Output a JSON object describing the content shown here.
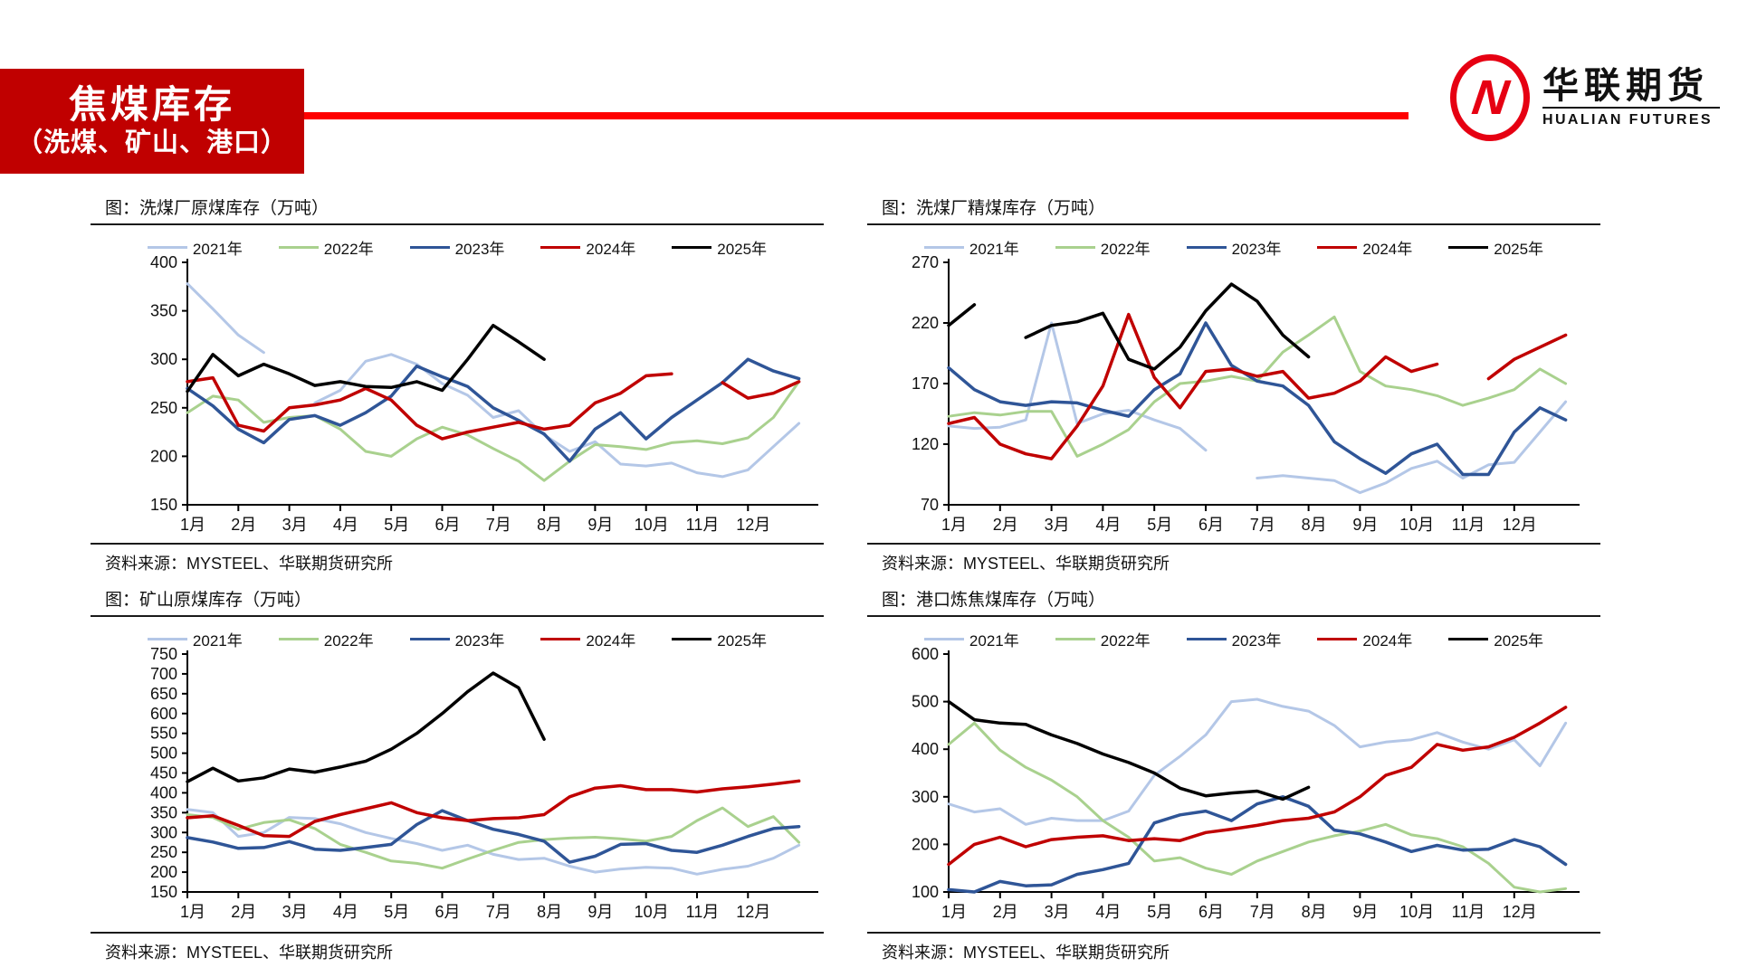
{
  "header": {
    "title": "焦煤库存",
    "subtitle": "（洗煤、矿山、港口）",
    "banner_color": "#C00000",
    "rule_color": "#FE0000",
    "logo_letter": "N",
    "logo_cn": "华联期货",
    "logo_en": "HUALIAN FUTURES",
    "logo_color": "#E60012"
  },
  "source_label": "资料来源：MYSTEEL、华联期货研究所",
  "months": [
    "1月",
    "2月",
    "3月",
    "4月",
    "5月",
    "6月",
    "7月",
    "8月",
    "9月",
    "10月",
    "11月",
    "12月"
  ],
  "legend_years": [
    "2021年",
    "2022年",
    "2023年",
    "2024年",
    "2025年"
  ],
  "series_colors": {
    "2021年": "#B4C7E7",
    "2022年": "#A9D18E",
    "2023年": "#2F5597",
    "2024年": "#C00000",
    "2025年": "#000000"
  },
  "chart_data": [
    {
      "type": "line",
      "title": "图：洗煤厂原煤库存（万吨）",
      "ylabel": "万吨",
      "ylim": [
        150,
        400
      ],
      "yticks": [
        150,
        200,
        250,
        300,
        350,
        400
      ],
      "x_unit": "半月 (1月初–12月末)",
      "series": [
        {
          "name": "2021年",
          "color": "#B4C7E7",
          "values": [
            378,
            352,
            325,
            307,
            null,
            255,
            268,
            298,
            305,
            295,
            275,
            263,
            240,
            247,
            222,
            205,
            215,
            192,
            190,
            193,
            183,
            179,
            186,
            210,
            234
          ]
        },
        {
          "name": "2022年",
          "color": "#A9D18E",
          "values": [
            245,
            262,
            258,
            235,
            240,
            242,
            228,
            205,
            200,
            218,
            230,
            222,
            208,
            195,
            175,
            195,
            212,
            210,
            207,
            214,
            216,
            213,
            219,
            240,
            277
          ]
        },
        {
          "name": "2023年",
          "color": "#2F5597",
          "values": [
            270,
            252,
            228,
            214,
            238,
            242,
            232,
            245,
            262,
            293,
            282,
            272,
            250,
            237,
            223,
            195,
            228,
            245,
            218,
            240,
            258,
            276,
            300,
            288,
            280
          ]
        },
        {
          "name": "2024年",
          "color": "#C00000",
          "values": [
            277,
            281,
            232,
            226,
            250,
            253,
            258,
            270,
            258,
            232,
            218,
            225,
            230,
            235,
            228,
            232,
            255,
            265,
            283,
            285,
            null,
            276,
            260,
            265,
            277
          ]
        },
        {
          "name": "2025年",
          "color": "#000000",
          "values": [
            267,
            305,
            283,
            295,
            285,
            273,
            277,
            272,
            271,
            277,
            268,
            300,
            335,
            318,
            300,
            null,
            null,
            null,
            null,
            null,
            null,
            null,
            null,
            null,
            null
          ]
        }
      ]
    },
    {
      "type": "line",
      "title": "图：洗煤厂精煤库存（万吨）",
      "ylabel": "万吨",
      "ylim": [
        70,
        270
      ],
      "yticks": [
        70,
        120,
        170,
        220,
        270
      ],
      "x_unit": "半月 (1月初–12月末)",
      "series": [
        {
          "name": "2021年",
          "color": "#B4C7E7",
          "values": [
            135,
            133,
            134,
            140,
            220,
            137,
            145,
            148,
            140,
            133,
            115,
            null,
            92,
            94,
            92,
            90,
            80,
            88,
            100,
            106,
            92,
            103,
            105,
            130,
            155
          ]
        },
        {
          "name": "2022年",
          "color": "#A9D18E",
          "values": [
            143,
            146,
            144,
            147,
            147,
            110,
            120,
            132,
            155,
            170,
            172,
            176,
            172,
            196,
            210,
            225,
            180,
            168,
            165,
            160,
            152,
            158,
            165,
            182,
            170
          ]
        },
        {
          "name": "2023年",
          "color": "#2F5597",
          "values": [
            183,
            165,
            155,
            152,
            155,
            154,
            148,
            143,
            165,
            178,
            220,
            185,
            172,
            168,
            152,
            122,
            108,
            96,
            112,
            120,
            95,
            95,
            130,
            150,
            140
          ]
        },
        {
          "name": "2024年",
          "color": "#C00000",
          "values": [
            137,
            142,
            120,
            112,
            108,
            135,
            168,
            227,
            175,
            150,
            180,
            182,
            176,
            180,
            158,
            162,
            172,
            192,
            180,
            186,
            null,
            174,
            190,
            200,
            210
          ]
        },
        {
          "name": "2025年",
          "color": "#000000",
          "values": [
            218,
            235,
            null,
            208,
            218,
            221,
            228,
            190,
            182,
            200,
            230,
            252,
            238,
            210,
            192,
            null,
            null,
            null,
            null,
            null,
            null,
            null,
            null,
            null,
            null
          ]
        }
      ]
    },
    {
      "type": "line",
      "title": "图：矿山原煤库存（万吨）",
      "ylabel": "万吨",
      "ylim": [
        150,
        750
      ],
      "yticks": [
        150,
        200,
        250,
        300,
        350,
        400,
        450,
        500,
        550,
        600,
        650,
        700,
        750
      ],
      "x_unit": "半月 (1月初–12月末)",
      "series": [
        {
          "name": "2021年",
          "color": "#B4C7E7",
          "values": [
            358,
            350,
            290,
            300,
            338,
            335,
            322,
            300,
            285,
            272,
            255,
            268,
            245,
            232,
            235,
            215,
            200,
            208,
            212,
            210,
            195,
            207,
            215,
            235,
            268
          ]
        },
        {
          "name": "2022年",
          "color": "#A9D18E",
          "values": [
            345,
            338,
            308,
            325,
            332,
            310,
            270,
            250,
            228,
            222,
            210,
            233,
            255,
            275,
            282,
            286,
            288,
            284,
            278,
            290,
            330,
            362,
            315,
            340,
            275
          ]
        },
        {
          "name": "2023年",
          "color": "#2F5597",
          "values": [
            287,
            276,
            260,
            262,
            277,
            258,
            255,
            262,
            270,
            320,
            355,
            330,
            308,
            295,
            278,
            225,
            240,
            270,
            272,
            255,
            250,
            268,
            290,
            310,
            315
          ]
        },
        {
          "name": "2024年",
          "color": "#C00000",
          "values": [
            337,
            342,
            318,
            292,
            290,
            328,
            345,
            360,
            375,
            350,
            337,
            330,
            335,
            337,
            345,
            390,
            412,
            418,
            408,
            408,
            402,
            410,
            415,
            422,
            430
          ]
        },
        {
          "name": "2025年",
          "color": "#000000",
          "values": [
            428,
            462,
            430,
            438,
            460,
            452,
            465,
            480,
            510,
            550,
            600,
            655,
            702,
            665,
            535,
            null,
            null,
            null,
            null,
            null,
            null,
            null,
            null,
            null,
            null
          ]
        }
      ]
    },
    {
      "type": "line",
      "title": "图：港口炼焦煤库存（万吨）",
      "ylabel": "万吨",
      "ylim": [
        100,
        600
      ],
      "yticks": [
        100,
        200,
        300,
        400,
        500,
        600
      ],
      "x_unit": "半月 (1月初–12月末)",
      "series": [
        {
          "name": "2021年",
          "color": "#B4C7E7",
          "values": [
            285,
            268,
            275,
            242,
            255,
            250,
            250,
            270,
            345,
            385,
            430,
            500,
            505,
            490,
            480,
            450,
            405,
            415,
            420,
            435,
            415,
            400,
            420,
            365,
            455
          ]
        },
        {
          "name": "2022年",
          "color": "#A9D18E",
          "values": [
            410,
            455,
            398,
            362,
            335,
            300,
            250,
            215,
            165,
            172,
            150,
            137,
            165,
            185,
            205,
            218,
            228,
            242,
            220,
            212,
            195,
            160,
            110,
            100,
            107
          ]
        },
        {
          "name": "2023年",
          "color": "#2F5597",
          "values": [
            105,
            100,
            122,
            113,
            115,
            137,
            147,
            160,
            245,
            262,
            270,
            250,
            285,
            300,
            280,
            230,
            222,
            205,
            185,
            198,
            188,
            190,
            210,
            195,
            158
          ]
        },
        {
          "name": "2024年",
          "color": "#C00000",
          "values": [
            158,
            200,
            215,
            195,
            210,
            215,
            218,
            208,
            212,
            208,
            225,
            232,
            240,
            250,
            255,
            268,
            300,
            345,
            362,
            410,
            398,
            405,
            425,
            455,
            488
          ]
        },
        {
          "name": "2025年",
          "color": "#000000",
          "values": [
            500,
            462,
            455,
            452,
            430,
            412,
            390,
            372,
            350,
            318,
            302,
            308,
            312,
            295,
            320,
            null,
            null,
            null,
            null,
            null,
            null,
            null,
            null,
            null,
            null
          ]
        }
      ]
    }
  ]
}
